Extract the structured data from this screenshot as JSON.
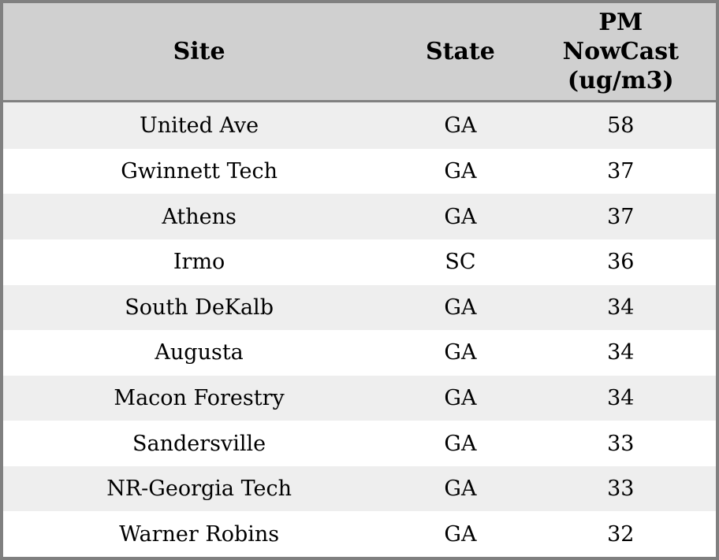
{
  "chart_data": {
    "type": "table",
    "columns": [
      "Site",
      "State",
      "PM\nNowCast\n(ug/m3)"
    ],
    "rows": [
      [
        "United Ave",
        "GA",
        58
      ],
      [
        "Gwinnett Tech",
        "GA",
        37
      ],
      [
        "Athens",
        "GA",
        37
      ],
      [
        "Irmo",
        "SC",
        36
      ],
      [
        "South DeKalb",
        "GA",
        34
      ],
      [
        "Augusta",
        "GA",
        34
      ],
      [
        "Macon Forestry",
        "GA",
        34
      ],
      [
        "Sandersville",
        "GA",
        33
      ],
      [
        "NR-Georgia Tech",
        "GA",
        33
      ],
      [
        "Warner Robins",
        "GA",
        32
      ]
    ],
    "layout": {
      "striped": true,
      "header_position": "top"
    }
  },
  "colors": {
    "header_bg": "#d0d0d0",
    "stripe_row_bg": "#eeeeee",
    "plain_row_bg": "#ffffff",
    "border": "#808080",
    "text": "#000000"
  }
}
